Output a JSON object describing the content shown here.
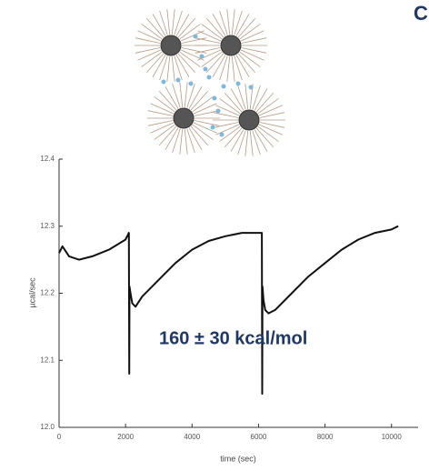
{
  "heading": "C",
  "chart_data": {
    "type": "line",
    "xlabel": "time (sec)",
    "ylabel": "µcal/sec",
    "annotation": "160 ± 30 kcal/mol",
    "color": "#111111",
    "x": [
      0,
      100,
      300,
      600,
      1000,
      1500,
      2000,
      2100,
      2110,
      2120,
      2150,
      2200,
      2300,
      2500,
      3000,
      3500,
      4000,
      4500,
      5000,
      5500,
      6000,
      6100,
      6110,
      6120,
      6150,
      6200,
      6300,
      6500,
      7000,
      7500,
      8000,
      8500,
      9000,
      9500,
      10000,
      10200
    ],
    "values": [
      12.26,
      12.27,
      12.255,
      12.25,
      12.255,
      12.265,
      12.28,
      12.29,
      12.08,
      12.21,
      12.2,
      12.185,
      12.18,
      12.195,
      12.22,
      12.245,
      12.265,
      12.278,
      12.285,
      12.29,
      12.29,
      12.29,
      12.05,
      12.21,
      12.19,
      12.175,
      12.17,
      12.175,
      12.2,
      12.225,
      12.245,
      12.265,
      12.28,
      12.29,
      12.295,
      12.3
    ],
    "xlim": [
      0,
      10800
    ],
    "ylim": [
      12.0,
      12.4
    ],
    "xticks": [
      0,
      2000,
      4000,
      6000,
      8000,
      10000
    ],
    "yticks": [
      {
        "value": 12,
        "label": "12.0"
      },
      12.1,
      12.2,
      12.3,
      12.4
    ]
  }
}
